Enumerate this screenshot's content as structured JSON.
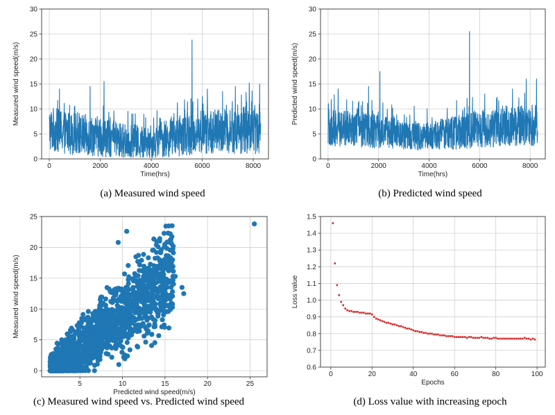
{
  "chart_data": [
    {
      "type": "line",
      "id": "a",
      "title": "",
      "caption": "(a) Measured wind speed",
      "xlabel": "Time(hrs)",
      "ylabel": "Measured wind speed(m/s)",
      "xlim": [
        -300,
        8600
      ],
      "ylim": [
        0,
        30
      ],
      "xticks": [
        "0",
        "2000",
        "4000",
        "6000",
        "8000"
      ],
      "yticks": [
        "0",
        "5",
        "10",
        "15",
        "20",
        "25",
        "30"
      ],
      "grid": true,
      "color": "#1f77b4",
      "n_points": 8300,
      "baseline_profile": {
        "x": [
          0,
          1000,
          2000,
          3000,
          4000,
          5000,
          6000,
          7000,
          8000,
          8300
        ],
        "mean": [
          6.0,
          5.0,
          4.5,
          3.5,
          3.2,
          4.5,
          5.5,
          5.5,
          6.0,
          6.0
        ],
        "amplitude": [
          4.5,
          4.2,
          4.0,
          3.5,
          3.2,
          4.0,
          4.5,
          4.5,
          5.0,
          5.0
        ]
      },
      "peaks": [
        {
          "x": 5600,
          "y": 23.8
        },
        {
          "x": 2150,
          "y": 15.5
        },
        {
          "x": 8250,
          "y": 15.0
        },
        {
          "x": 7850,
          "y": 15.2
        },
        {
          "x": 1600,
          "y": 14.5
        },
        {
          "x": 7300,
          "y": 14.5
        },
        {
          "x": 6200,
          "y": 14.0
        },
        {
          "x": 400,
          "y": 14.0
        },
        {
          "x": 6800,
          "y": 13.5
        }
      ]
    },
    {
      "type": "line",
      "id": "b",
      "title": "",
      "caption": "(b) Predicted wind speed",
      "xlabel": "Time(hrs)",
      "ylabel": "Predicted wind speed(m/s)",
      "xlim": [
        -300,
        8600
      ],
      "ylim": [
        0,
        30
      ],
      "xticks": [
        "0",
        "2000",
        "4000",
        "6000",
        "8000"
      ],
      "yticks": [
        "0",
        "5",
        "10",
        "15",
        "20",
        "25",
        "30"
      ],
      "grid": true,
      "color": "#1f77b4",
      "n_points": 8300,
      "baseline_profile": {
        "x": [
          0,
          1000,
          2000,
          3000,
          4000,
          5000,
          6000,
          7000,
          8000,
          8300
        ],
        "mean": [
          6.5,
          5.8,
          5.5,
          4.8,
          4.5,
          5.2,
          6.0,
          6.3,
          6.8,
          7.0
        ],
        "amplitude": [
          3.8,
          3.6,
          3.4,
          3.0,
          2.8,
          3.4,
          3.8,
          3.8,
          4.2,
          4.2
        ]
      },
      "peaks": [
        {
          "x": 5600,
          "y": 25.5
        },
        {
          "x": 2050,
          "y": 17.5
        },
        {
          "x": 8250,
          "y": 16.0
        },
        {
          "x": 7850,
          "y": 16.0
        },
        {
          "x": 1600,
          "y": 14.5
        },
        {
          "x": 7300,
          "y": 14.0
        },
        {
          "x": 400,
          "y": 14.0
        },
        {
          "x": 6200,
          "y": 13.0
        }
      ]
    },
    {
      "type": "scatter",
      "id": "c",
      "title": "",
      "caption": "(c) Measured wind speed vs. Predicted wind  speed",
      "xlabel": "Predicted wind speed(m/s)",
      "ylabel": "Measured wind speed(m/s)",
      "xlim": [
        0.5,
        27
      ],
      "ylim": [
        -1,
        25
      ],
      "xticks": [
        "5",
        "10",
        "15",
        "20",
        "25"
      ],
      "yticks": [
        "0",
        "5",
        "10",
        "15",
        "20",
        "25"
      ],
      "grid": true,
      "color": "#1f77b4",
      "relation": {
        "slope": 1.15,
        "intercept": -2.5,
        "spread": 2.5
      },
      "outliers": [
        {
          "x": 25.5,
          "y": 23.8
        },
        {
          "x": 10.5,
          "y": 22.6
        },
        {
          "x": 9.5,
          "y": 20.8
        },
        {
          "x": 11.8,
          "y": 17.7
        },
        {
          "x": 16.2,
          "y": 15.3
        },
        {
          "x": 17.2,
          "y": 12.5
        },
        {
          "x": 17.0,
          "y": 13.5
        },
        {
          "x": 14.5,
          "y": 15.0
        }
      ]
    },
    {
      "type": "scatter",
      "id": "d",
      "title": "",
      "caption": "(d) Loss value with increasing epoch",
      "xlabel": "Epochs",
      "ylabel": "Loss value",
      "xlim": [
        -5,
        104
      ],
      "ylim": [
        0.6,
        1.5
      ],
      "xticks": [
        "0",
        "20",
        "40",
        "60",
        "80",
        "100"
      ],
      "yticks": [
        "0.6",
        "0.7",
        "0.8",
        "0.9",
        "1.0",
        "1.1",
        "1.2",
        "1.3",
        "1.4",
        "1.5"
      ],
      "grid": true,
      "color": "#d62728",
      "x": [
        1,
        2,
        3,
        4,
        5,
        6,
        7,
        8,
        9,
        10,
        11,
        12,
        13,
        14,
        15,
        16,
        17,
        18,
        19,
        20,
        21,
        22,
        23,
        24,
        25,
        26,
        27,
        28,
        29,
        30,
        31,
        32,
        33,
        34,
        35,
        36,
        37,
        38,
        39,
        40,
        41,
        42,
        43,
        44,
        45,
        46,
        47,
        48,
        49,
        50,
        51,
        52,
        53,
        54,
        55,
        56,
        57,
        58,
        59,
        60,
        61,
        62,
        63,
        64,
        65,
        66,
        67,
        68,
        69,
        70,
        71,
        72,
        73,
        74,
        75,
        76,
        77,
        78,
        79,
        80,
        81,
        82,
        83,
        84,
        85,
        86,
        87,
        88,
        89,
        90,
        91,
        92,
        93,
        94,
        95,
        96,
        97,
        98,
        99
      ],
      "y": [
        1.46,
        1.22,
        1.09,
        1.03,
        0.99,
        0.97,
        0.95,
        0.94,
        0.935,
        0.935,
        0.93,
        0.93,
        0.93,
        0.925,
        0.925,
        0.925,
        0.92,
        0.92,
        0.92,
        0.915,
        0.9,
        0.89,
        0.885,
        0.88,
        0.875,
        0.87,
        0.865,
        0.865,
        0.86,
        0.855,
        0.855,
        0.85,
        0.845,
        0.845,
        0.84,
        0.835,
        0.83,
        0.83,
        0.825,
        0.82,
        0.815,
        0.815,
        0.81,
        0.81,
        0.805,
        0.805,
        0.8,
        0.8,
        0.8,
        0.795,
        0.795,
        0.795,
        0.79,
        0.79,
        0.79,
        0.785,
        0.785,
        0.785,
        0.785,
        0.78,
        0.78,
        0.78,
        0.78,
        0.78,
        0.78,
        0.775,
        0.78,
        0.78,
        0.775,
        0.775,
        0.775,
        0.775,
        0.78,
        0.775,
        0.775,
        0.775,
        0.77,
        0.77,
        0.775,
        0.775,
        0.77,
        0.77,
        0.77,
        0.77,
        0.77,
        0.77,
        0.77,
        0.77,
        0.77,
        0.77,
        0.77,
        0.77,
        0.77,
        0.775,
        0.77,
        0.77,
        0.765,
        0.77,
        0.765
      ]
    }
  ]
}
